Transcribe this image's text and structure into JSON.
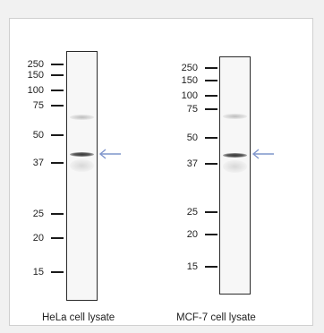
{
  "colors": {
    "arrow": "#7f95cc",
    "band": "#3a3a3a",
    "marker_tick": "#1a1a1a"
  },
  "panels": [
    {
      "caption": "HeLa cell lysate",
      "markers": [
        "250",
        "150",
        "100",
        "75",
        "50",
        "37",
        "25",
        "20",
        "15"
      ],
      "arrow_icon": "left-arrow-icon"
    },
    {
      "caption": "MCF-7 cell lysate",
      "markers": [
        "250",
        "150",
        "100",
        "75",
        "50",
        "37",
        "25",
        "20",
        "15"
      ],
      "arrow_icon": "left-arrow-icon"
    }
  ]
}
